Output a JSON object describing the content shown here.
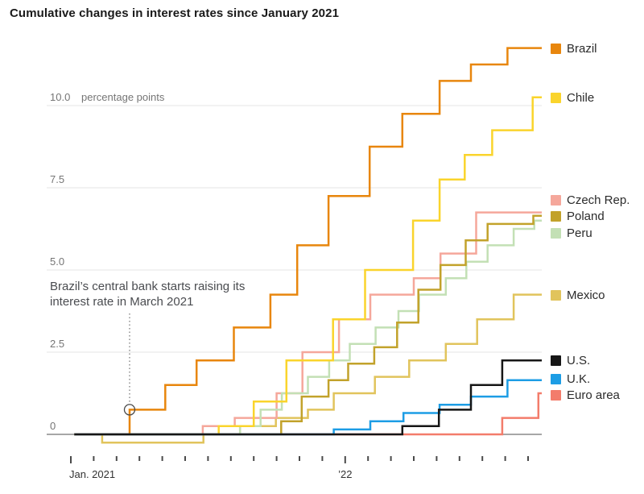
{
  "title": "Cumulative changes in interest rates since January 2021",
  "chart_data": {
    "type": "line",
    "step": true,
    "title": "Cumulative changes in interest rates since January 2021",
    "xlabel": "",
    "ylabel": "percentage points",
    "ylim": [
      -0.5,
      12.5
    ],
    "grid": "horizontal",
    "legend_position": "right",
    "x_axis": {
      "tick_count": 21,
      "year_tick_months": [
        0,
        12
      ],
      "labels": [
        {
          "text": "Jan. 2021",
          "month": 0,
          "align": "start"
        },
        {
          "text": "’22",
          "month": 12,
          "align": "middle"
        }
      ]
    },
    "y_axis": {
      "unit": "percentage points",
      "ticks": [
        {
          "v": 0,
          "label": "0"
        },
        {
          "v": 2.5,
          "label": "2.5"
        },
        {
          "v": 5.0,
          "label": "5.0"
        },
        {
          "v": 7.5,
          "label": "7.5"
        },
        {
          "v": 10.0,
          "label": "10.0"
        }
      ]
    },
    "annotation": {
      "line1": "Brazil’s central bank starts raising its",
      "line2": "interest rate in March 2021",
      "month": 2.57,
      "value": 0.75
    },
    "series": [
      {
        "name": "Brazil",
        "color": "#e8860d",
        "final": 11.75,
        "points": [
          [
            0,
            0
          ],
          [
            2.57,
            0.75
          ],
          [
            4.13,
            1.5
          ],
          [
            5.5,
            2.25
          ],
          [
            7.13,
            3.25
          ],
          [
            8.73,
            4.25
          ],
          [
            9.9,
            5.75
          ],
          [
            11.27,
            7.25
          ],
          [
            13.07,
            8.75
          ],
          [
            14.5,
            9.75
          ],
          [
            16.13,
            10.75
          ],
          [
            17.5,
            11.25
          ],
          [
            19.1,
            11.75
          ]
        ]
      },
      {
        "name": "Chile",
        "color": "#fad42c",
        "final": 10.25,
        "points": [
          [
            0,
            0
          ],
          [
            6.47,
            0.25
          ],
          [
            8.0,
            1.0
          ],
          [
            9.43,
            2.25
          ],
          [
            11.47,
            3.5
          ],
          [
            12.87,
            5.0
          ],
          [
            14.97,
            6.5
          ],
          [
            16.13,
            7.75
          ],
          [
            17.23,
            8.5
          ],
          [
            18.43,
            9.25
          ],
          [
            20.2,
            10.25
          ]
        ]
      },
      {
        "name": "Czech Rep.",
        "color": "#f5a79b",
        "final": 6.75,
        "points": [
          [
            0,
            0
          ],
          [
            5.77,
            0.25
          ],
          [
            7.17,
            0.5
          ],
          [
            9.0,
            1.25
          ],
          [
            10.13,
            2.5
          ],
          [
            11.73,
            3.5
          ],
          [
            13.1,
            4.25
          ],
          [
            15.0,
            4.75
          ],
          [
            16.17,
            5.5
          ],
          [
            17.73,
            6.75
          ]
        ]
      },
      {
        "name": "Poland",
        "color": "#c2a22b",
        "final": 6.65,
        "points": [
          [
            0,
            0
          ],
          [
            9.2,
            0.4
          ],
          [
            10.1,
            1.15
          ],
          [
            11.27,
            1.65
          ],
          [
            12.13,
            2.15
          ],
          [
            13.27,
            2.65
          ],
          [
            14.27,
            3.4
          ],
          [
            15.2,
            4.4
          ],
          [
            16.17,
            5.15
          ],
          [
            17.27,
            5.9
          ],
          [
            18.23,
            6.4
          ],
          [
            20.23,
            6.65
          ]
        ]
      },
      {
        "name": "Peru",
        "color": "#c3e0b5",
        "final": 6.5,
        "points": [
          [
            0,
            0
          ],
          [
            7.4,
            0.25
          ],
          [
            8.3,
            0.75
          ],
          [
            9.23,
            1.25
          ],
          [
            10.37,
            1.75
          ],
          [
            11.3,
            2.25
          ],
          [
            12.2,
            2.75
          ],
          [
            13.33,
            3.25
          ],
          [
            14.33,
            3.75
          ],
          [
            15.23,
            4.25
          ],
          [
            16.4,
            4.75
          ],
          [
            17.3,
            5.25
          ],
          [
            18.23,
            5.75
          ],
          [
            19.37,
            6.25
          ],
          [
            20.27,
            6.5
          ]
        ]
      },
      {
        "name": "Mexico",
        "color": "#e1c45c",
        "final": 4.25,
        "points": [
          [
            0,
            0
          ],
          [
            1.37,
            -0.25
          ],
          [
            5.8,
            0
          ],
          [
            7.4,
            0.25
          ],
          [
            8.97,
            0.5
          ],
          [
            10.37,
            0.75
          ],
          [
            11.5,
            1.25
          ],
          [
            13.3,
            1.75
          ],
          [
            14.8,
            2.25
          ],
          [
            16.4,
            2.75
          ],
          [
            17.77,
            3.5
          ],
          [
            19.37,
            4.25
          ]
        ]
      },
      {
        "name": "U.S.",
        "color": "#161616",
        "final": 2.25,
        "points": [
          [
            0,
            0
          ],
          [
            14.5,
            0.25
          ],
          [
            16.1,
            0.75
          ],
          [
            17.5,
            1.5
          ],
          [
            18.87,
            2.25
          ]
        ]
      },
      {
        "name": "U.K.",
        "color": "#1d9de5",
        "final": 1.65,
        "points": [
          [
            0,
            0
          ],
          [
            11.5,
            0.15
          ],
          [
            13.1,
            0.4
          ],
          [
            14.55,
            0.65
          ],
          [
            16.13,
            0.9
          ],
          [
            17.5,
            1.15
          ],
          [
            19.1,
            1.65
          ]
        ]
      },
      {
        "name": "Euro area",
        "color": "#f37c6b",
        "final": 1.25,
        "points": [
          [
            0,
            0
          ],
          [
            18.87,
            0.5
          ],
          [
            20.45,
            1.25
          ]
        ]
      }
    ],
    "draw_order": [
      "Mexico",
      "Czech Rep.",
      "Peru",
      "Poland",
      "Chile",
      "Brazil",
      "Euro area",
      "U.K.",
      "U.S."
    ]
  }
}
